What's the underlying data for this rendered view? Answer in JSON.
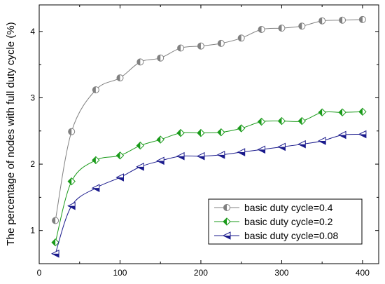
{
  "chart_data": {
    "type": "line",
    "ylabel": "The percentage of nodes with full duty cycle (%)",
    "xlabel": "",
    "xlim": [
      0,
      420
    ],
    "ylim": [
      0.5,
      4.4
    ],
    "xticks": [
      "0",
      "100",
      "200",
      "300",
      "400"
    ],
    "yticks": [
      "1",
      "2",
      "3",
      "4"
    ],
    "grid": false,
    "legend_position": "bottom-right",
    "x": [
      20,
      40,
      70,
      100,
      125,
      150,
      175,
      200,
      225,
      250,
      275,
      300,
      325,
      350,
      375,
      400
    ],
    "series": [
      {
        "name": "basic duty cycle=0.4",
        "color": "#808080",
        "marker": "half-circle",
        "values": [
          1.15,
          2.49,
          3.12,
          3.3,
          3.54,
          3.6,
          3.75,
          3.78,
          3.82,
          3.9,
          4.03,
          4.05,
          4.08,
          4.16,
          4.17,
          4.18
        ]
      },
      {
        "name": "basic duty cycle=0.2",
        "color": "#1a9a1a",
        "marker": "half-diamond",
        "values": [
          0.82,
          1.74,
          2.06,
          2.13,
          2.28,
          2.37,
          2.47,
          2.47,
          2.48,
          2.54,
          2.64,
          2.65,
          2.65,
          2.78,
          2.78,
          2.79
        ]
      },
      {
        "name": "basic duty cycle=0.08",
        "color": "#1a1a8c",
        "marker": "half-triangle-left",
        "values": [
          0.65,
          1.37,
          1.64,
          1.8,
          1.96,
          2.05,
          2.12,
          2.12,
          2.14,
          2.18,
          2.22,
          2.26,
          2.3,
          2.35,
          2.44,
          2.45
        ]
      }
    ]
  }
}
